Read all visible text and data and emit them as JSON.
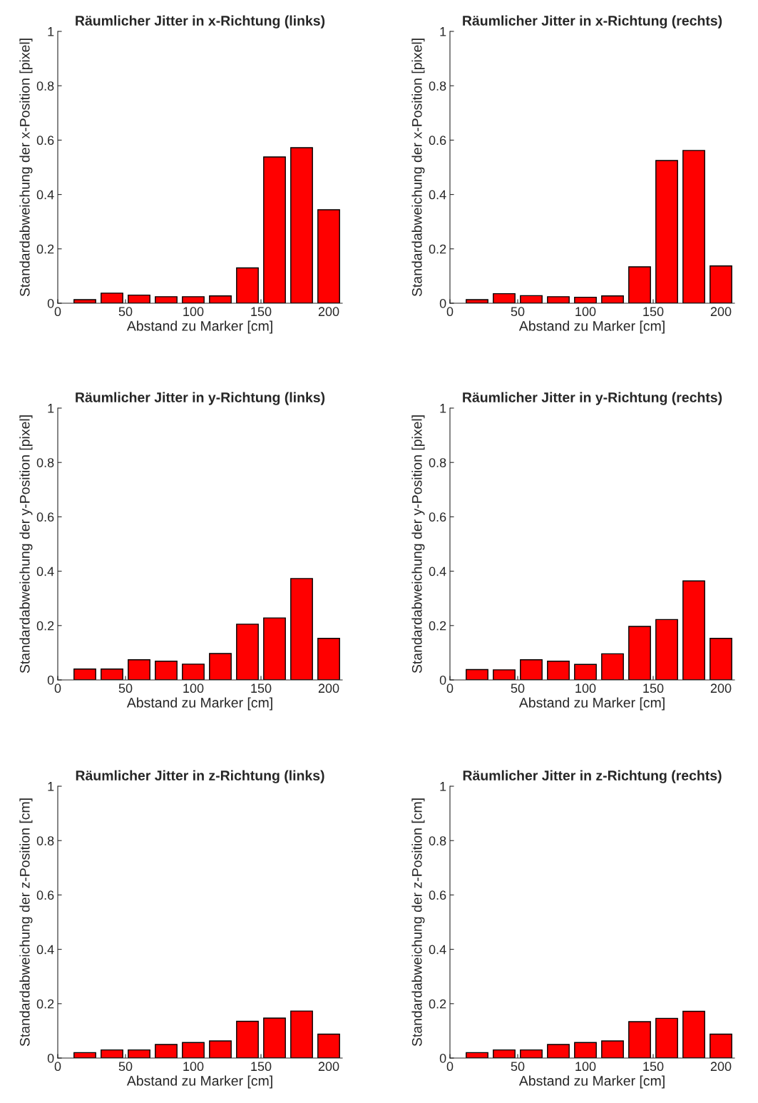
{
  "chart_data": [
    {
      "type": "bar",
      "title": "Räumlicher Jitter in x-Richtung (links)",
      "xlabel": "Abstand zu Marker [cm]",
      "ylabel": "Standardabweichung der x-Position [pixel]",
      "x": [
        20,
        40,
        60,
        80,
        100,
        120,
        140,
        160,
        180,
        200
      ],
      "series": [
        {
          "color": "#ff0000",
          "values": [
            0.013,
            0.037,
            0.03,
            0.024,
            0.024,
            0.027,
            0.13,
            0.538,
            0.572,
            0.344
          ]
        }
      ],
      "xlim": [
        0,
        210
      ],
      "ylim": [
        0,
        1
      ],
      "xticks": [
        0,
        50,
        100,
        150,
        200
      ],
      "yticks": [
        0,
        0.2,
        0.4,
        0.6,
        0.8,
        1
      ],
      "grid": false,
      "legend": false
    },
    {
      "type": "bar",
      "title": "Räumlicher Jitter in x-Richtung (rechts)",
      "xlabel": "Abstand zu Marker [cm]",
      "ylabel": "Standardabweichung der x-Position [pixel]",
      "x": [
        20,
        40,
        60,
        80,
        100,
        120,
        140,
        160,
        180,
        200
      ],
      "series": [
        {
          "color": "#ff0000",
          "values": [
            0.013,
            0.035,
            0.028,
            0.024,
            0.022,
            0.027,
            0.134,
            0.525,
            0.562,
            0.137
          ]
        }
      ],
      "xlim": [
        0,
        210
      ],
      "ylim": [
        0,
        1
      ],
      "xticks": [
        0,
        50,
        100,
        150,
        200
      ],
      "yticks": [
        0,
        0.2,
        0.4,
        0.6,
        0.8,
        1
      ],
      "grid": false,
      "legend": false
    },
    {
      "type": "bar",
      "title": "Räumlicher Jitter in y-Richtung (links)",
      "xlabel": "Abstand zu Marker [cm]",
      "ylabel": "Standardabweichung der y-Position [pixel]",
      "x": [
        20,
        40,
        60,
        80,
        100,
        120,
        140,
        160,
        180,
        200
      ],
      "series": [
        {
          "color": "#ff0000",
          "values": [
            0.04,
            0.04,
            0.074,
            0.069,
            0.058,
            0.097,
            0.205,
            0.228,
            0.373,
            0.153
          ]
        }
      ],
      "xlim": [
        0,
        210
      ],
      "ylim": [
        0,
        1
      ],
      "xticks": [
        0,
        50,
        100,
        150,
        200
      ],
      "yticks": [
        0,
        0.2,
        0.4,
        0.6,
        0.8,
        1
      ],
      "grid": false,
      "legend": false
    },
    {
      "type": "bar",
      "title": "Räumlicher Jitter in y-Richtung (rechts)",
      "xlabel": "Abstand zu Marker [cm]",
      "ylabel": "Standardabweichung der y-Position [pixel]",
      "x": [
        20,
        40,
        60,
        80,
        100,
        120,
        140,
        160,
        180,
        200
      ],
      "series": [
        {
          "color": "#ff0000",
          "values": [
            0.038,
            0.037,
            0.074,
            0.069,
            0.057,
            0.096,
            0.197,
            0.222,
            0.364,
            0.153
          ]
        }
      ],
      "xlim": [
        0,
        210
      ],
      "ylim": [
        0,
        1
      ],
      "xticks": [
        0,
        50,
        100,
        150,
        200
      ],
      "yticks": [
        0,
        0.2,
        0.4,
        0.6,
        0.8,
        1
      ],
      "grid": false,
      "legend": false
    },
    {
      "type": "bar",
      "title": "Räumlicher Jitter in z-Richtung (links)",
      "xlabel": "Abstand zu Marker [cm]",
      "ylabel": "Standardabweichung der z-Position [cm]",
      "x": [
        20,
        40,
        60,
        80,
        100,
        120,
        140,
        160,
        180,
        200
      ],
      "series": [
        {
          "color": "#ff0000",
          "values": [
            0.02,
            0.03,
            0.03,
            0.05,
            0.057,
            0.063,
            0.135,
            0.147,
            0.173,
            0.088
          ]
        }
      ],
      "xlim": [
        0,
        210
      ],
      "ylim": [
        0,
        1
      ],
      "xticks": [
        0,
        50,
        100,
        150,
        200
      ],
      "yticks": [
        0,
        0.2,
        0.4,
        0.6,
        0.8,
        1
      ],
      "grid": false,
      "legend": false
    },
    {
      "type": "bar",
      "title": "Räumlicher Jitter in z-Richtung (rechts)",
      "xlabel": "Abstand zu Marker [cm]",
      "ylabel": "Standardabweichung der z-Position [cm]",
      "x": [
        20,
        40,
        60,
        80,
        100,
        120,
        140,
        160,
        180,
        200
      ],
      "series": [
        {
          "color": "#ff0000",
          "values": [
            0.02,
            0.03,
            0.03,
            0.05,
            0.057,
            0.063,
            0.134,
            0.146,
            0.172,
            0.088
          ]
        }
      ],
      "xlim": [
        0,
        210
      ],
      "ylim": [
        0,
        1
      ],
      "xticks": [
        0,
        50,
        100,
        150,
        200
      ],
      "yticks": [
        0,
        0.2,
        0.4,
        0.6,
        0.8,
        1
      ],
      "grid": false,
      "legend": false
    }
  ]
}
